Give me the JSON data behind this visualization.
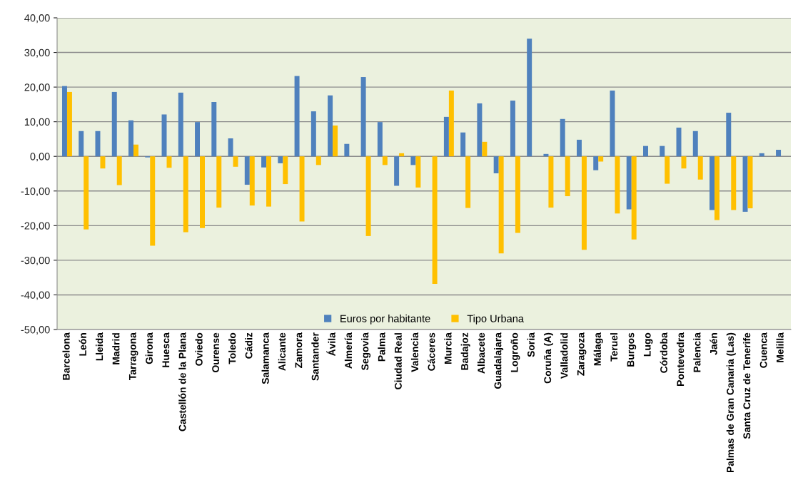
{
  "chart_data": {
    "type": "bar",
    "categories": [
      "Barcelona",
      "León",
      "Lleida",
      "Madrid",
      "Tarragona",
      "Girona",
      "Huesca",
      "Castellón de la Plana",
      "Oviedo",
      "Ourense",
      "Toledo",
      "Cádiz",
      "Salamanca",
      "Alicante",
      "Zamora",
      "Santander",
      "Ávila",
      "Almería",
      "Segovia",
      "Palma",
      "Ciudad Real",
      "Valencia",
      "Cáceres",
      "Murcia",
      "Badajoz",
      "Albacete",
      "Guadalajara",
      "Logroño",
      "Soria",
      "Coruña (A)",
      "Valladolid",
      "Zaragoza",
      "Málaga",
      "Teruel",
      "Burgos",
      "Lugo",
      "Córdoba",
      "Pontevedra",
      "Palencia",
      "Jaén",
      "Palmas de Gran Canaria (Las)",
      "Santa Cruz de Tenerife",
      "Cuenca",
      "Melilla"
    ],
    "series": [
      {
        "name": "Euros por habitante",
        "color": "#4f81bd",
        "values": [
          20.3,
          7.3,
          7.3,
          18.6,
          10.4,
          -0.3,
          12.1,
          18.4,
          9.9,
          15.7,
          5.2,
          -8.2,
          -3.2,
          -2.0,
          23.2,
          13.0,
          17.6,
          3.6,
          22.9,
          9.9,
          -8.5,
          -2.5,
          0,
          11.4,
          6.9,
          15.3,
          -4.9,
          16.1,
          34.0,
          0.7,
          10.8,
          4.8,
          -4.0,
          19.0,
          -15.3,
          3.0,
          3.0,
          8.3,
          7.3,
          -15.5,
          12.6,
          -16.0,
          0.9,
          1.9
        ]
      },
      {
        "name": "Tipo Urbana",
        "color": "#ffc000",
        "values": [
          18.6,
          -21.1,
          -3.5,
          -8.3,
          3.4,
          -25.8,
          -3.3,
          -21.9,
          -20.7,
          -14.8,
          -3.0,
          -14.2,
          -14.5,
          -8.0,
          -18.8,
          -2.5,
          8.9,
          0,
          -23.0,
          -2.5,
          0.9,
          -9.0,
          -36.8,
          19.0,
          -14.9,
          4.2,
          -28.0,
          -22.1,
          0,
          -14.8,
          -11.5,
          -27.0,
          -1.5,
          -16.5,
          -24.0,
          0,
          -7.9,
          -3.5,
          -6.7,
          -18.4,
          -15.5,
          -15.0,
          0,
          0
        ]
      }
    ],
    "ylim": [
      -50,
      40
    ],
    "yticks": [
      {
        "value": -50,
        "label": "-50,00"
      },
      {
        "value": -40,
        "label": "-40,00"
      },
      {
        "value": -30,
        "label": "-30,00"
      },
      {
        "value": -20,
        "label": "-20,00"
      },
      {
        "value": -10,
        "label": "-10,00"
      },
      {
        "value": 0,
        "label": "0,00"
      },
      {
        "value": 10,
        "label": "10,00"
      },
      {
        "value": 20,
        "label": "20,00"
      },
      {
        "value": 30,
        "label": "30,00"
      },
      {
        "value": 40,
        "label": "40,00"
      }
    ],
    "grid": "y",
    "legend": "bottom"
  }
}
